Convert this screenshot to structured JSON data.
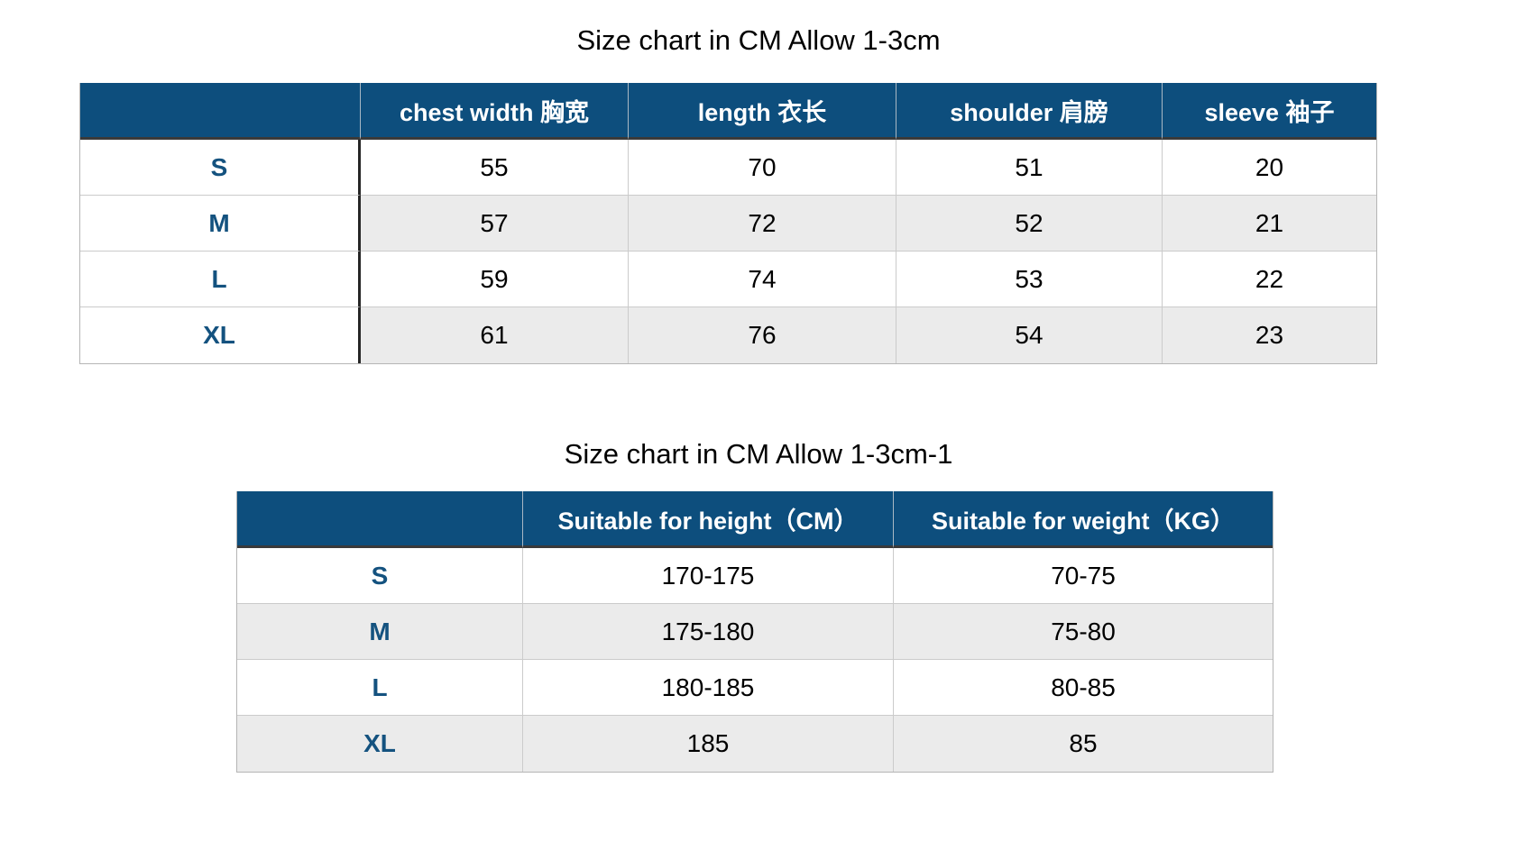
{
  "colors": {
    "header_bg": "#0d4e7d",
    "header_text": "#ffffff",
    "row_alt_bg": "#ebebeb",
    "row_bg": "#ffffff",
    "row_label_text": "#14527f",
    "data_text": "#000000",
    "thick_divider": "#262626",
    "thin_border": "#cbcbcb"
  },
  "tables": [
    {
      "title": "Size chart in CM Allow 1-3cm",
      "columns": [
        "",
        "chest width 胸宽",
        "length 衣长",
        "shoulder 肩膀",
        "sleeve 袖子"
      ],
      "rows": [
        {
          "label": "S",
          "values": [
            "55",
            "70",
            "51",
            "20"
          ]
        },
        {
          "label": "M",
          "values": [
            "57",
            "72",
            "52",
            "21"
          ]
        },
        {
          "label": "L",
          "values": [
            "59",
            "74",
            "53",
            "22"
          ]
        },
        {
          "label": "XL",
          "values": [
            "61",
            "76",
            "54",
            "23"
          ]
        }
      ]
    },
    {
      "title": "Size chart in CM Allow 1-3cm-1",
      "columns": [
        "",
        "Suitable for height（CM）",
        "Suitable for weight（KG）"
      ],
      "rows": [
        {
          "label": "S",
          "values": [
            "170-175",
            "70-75"
          ]
        },
        {
          "label": "M",
          "values": [
            "175-180",
            "75-80"
          ]
        },
        {
          "label": "L",
          "values": [
            "180-185",
            "80-85"
          ]
        },
        {
          "label": "XL",
          "values": [
            "185",
            "85"
          ]
        }
      ]
    }
  ]
}
